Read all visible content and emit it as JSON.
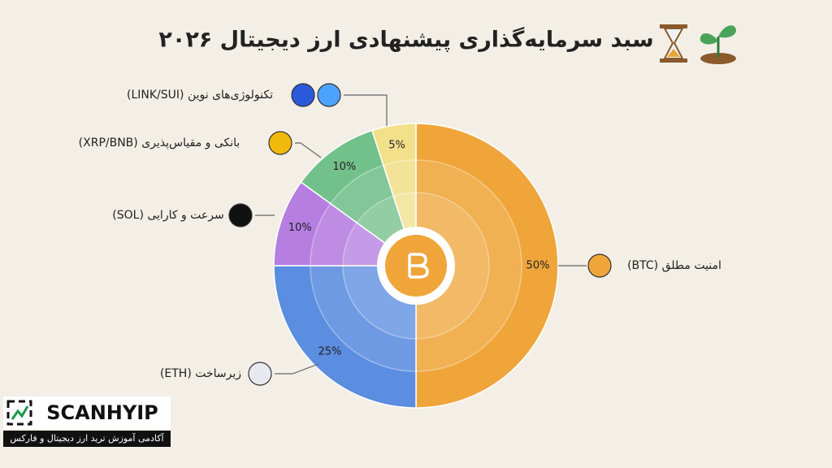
{
  "chart_data": {
    "type": "pie",
    "title": "سبد سرمایه‌گذاری پیشنهادی ارز دیجیتال ۲۰۲۶",
    "categories": [
      "امنیت مطلق (BTC)",
      "زیرساخت (ETH)",
      "سرعت و کارایی (SOL)",
      "بانکی و مقیاس‌پذیری (XRP/BNB)",
      "تکنولوژی‌های نوین (LINK/SUI)"
    ],
    "values": [
      50,
      25,
      10,
      10,
      5
    ],
    "value_labels": [
      "50%",
      "25%",
      "10%",
      "10%",
      "5%"
    ],
    "colors": [
      "#f0a53a",
      "#5b8de0",
      "#b57ee0",
      "#72c08a",
      "#f2e08a"
    ]
  },
  "brand": {
    "name": "SCANHYIP",
    "tagline": "آکادمی آموزش ترید ارز دیجیتال و فارکس"
  }
}
